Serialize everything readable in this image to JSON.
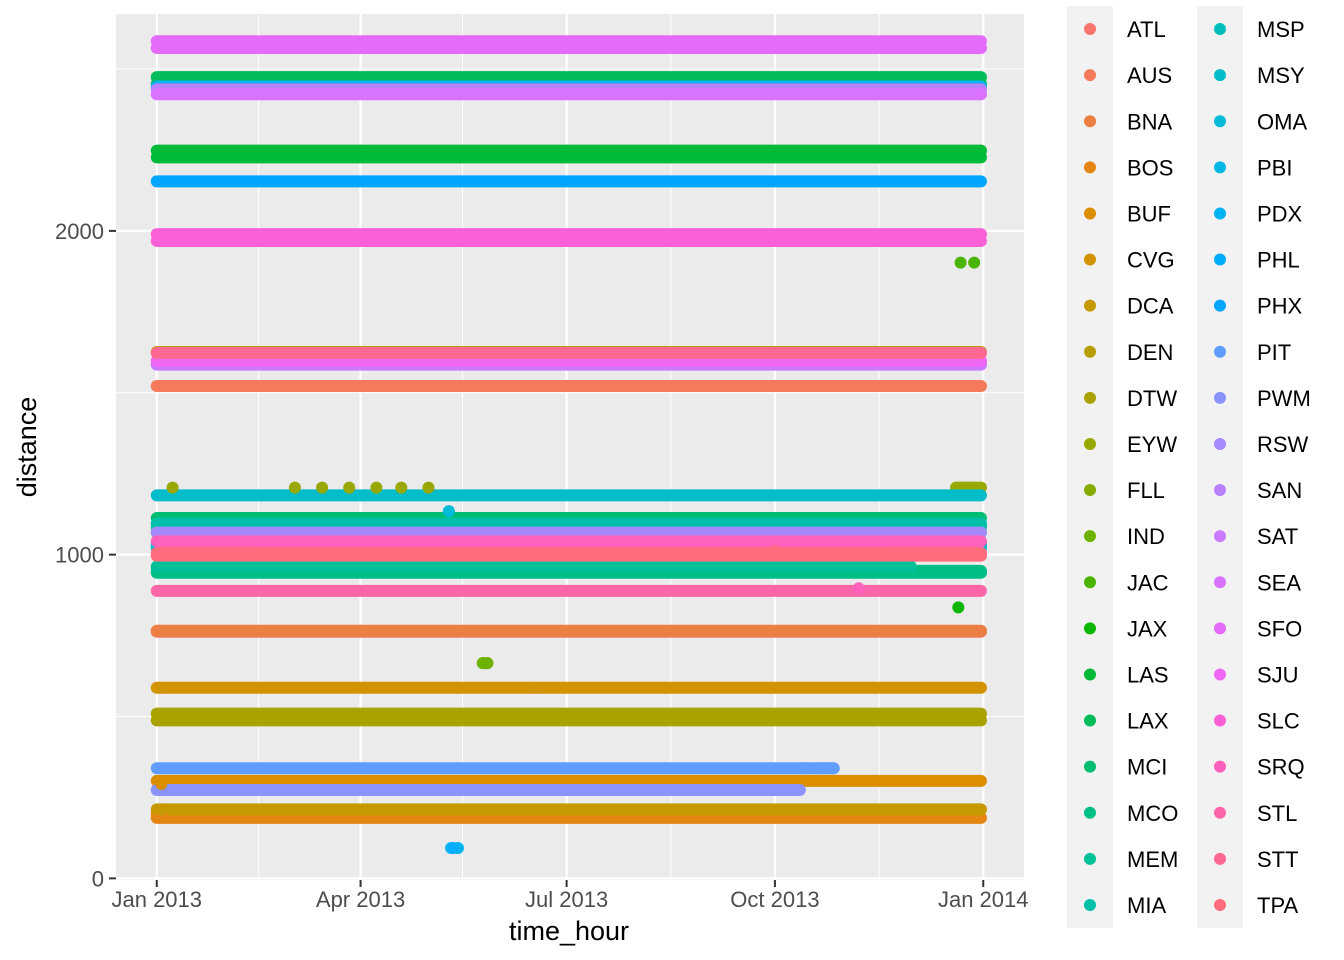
{
  "chart_data": {
    "type": "scatter",
    "title": "",
    "xlabel": "time_hour",
    "ylabel": "distance",
    "x_ticks": [
      "Jan 2013",
      "Apr 2013",
      "Jul 2013",
      "Oct 2013",
      "Jan 2014"
    ],
    "x_range": [
      "2012-12-14",
      "2014-01-19"
    ],
    "y_ticks": [
      0,
      1000,
      2000
    ],
    "y_range": [
      -5,
      2670
    ],
    "grid": true,
    "background": "#ebebeb",
    "legend_position": "right",
    "legend_title": "",
    "legend_columns": 2,
    "series": [
      {
        "name": "ATL",
        "color": "#F8766D",
        "bands": [
          {
            "y": 762,
            "x": [
              "2013-01-01",
              "2013-12-31"
            ]
          }
        ]
      },
      {
        "name": "AUS",
        "color": "#F47A5B",
        "bands": [
          {
            "y": 1521,
            "x": [
              "2013-01-01",
              "2013-12-31"
            ]
          }
        ]
      },
      {
        "name": "BNA",
        "color": "#EC7F43",
        "bands": [
          {
            "y": 765,
            "x": [
              "2013-01-01",
              "2013-12-31"
            ]
          }
        ]
      },
      {
        "name": "BOS",
        "color": "#E48613",
        "bands": [
          {
            "y": 187,
            "x": [
              "2013-01-01",
              "2013-12-31"
            ]
          },
          {
            "y": 200,
            "x": [
              "2013-01-01",
              "2013-01-04"
            ]
          }
        ],
        "points": [
          {
            "x": "2013-01-03",
            "y": 200
          }
        ]
      },
      {
        "name": "BUF",
        "color": "#DB8E00",
        "bands": [
          {
            "y": 301,
            "x": [
              "2013-01-01",
              "2013-12-31"
            ]
          }
        ],
        "points": [
          {
            "x": "2013-01-03",
            "y": 292
          }
        ]
      },
      {
        "name": "CVG",
        "color": "#D19300",
        "bands": [
          {
            "y": 589,
            "x": [
              "2013-01-01",
              "2013-12-31"
            ]
          }
        ],
        "points": [
          {
            "x": "2013-01-04",
            "y": 589
          },
          {
            "x": "2013-06-16",
            "y": 589
          }
        ]
      },
      {
        "name": "DCA",
        "color": "#C69900",
        "bands": [
          {
            "y": 213,
            "x": [
              "2013-01-01",
              "2013-12-31"
            ]
          }
        ],
        "points": [
          {
            "x": "2013-01-03",
            "y": 213
          }
        ]
      },
      {
        "name": "DEN",
        "color": "#B89E00",
        "bands": [
          {
            "y": 1626,
            "x": [
              "2013-01-01",
              "2013-12-31"
            ]
          }
        ]
      },
      {
        "name": "DTW",
        "color": "#AAA200",
        "bands": [
          {
            "y": 488,
            "x": [
              "2013-01-01",
              "2013-12-31"
            ]
          },
          {
            "y": 509,
            "x": [
              "2013-01-01",
              "2013-12-31"
            ]
          }
        ]
      },
      {
        "name": "EYW",
        "color": "#99A800",
        "bands": [
          {
            "y": 1207,
            "x": [
              "2013-12-20",
              "2013-12-31"
            ]
          }
        ],
        "points": [
          {
            "x": "2013-01-08",
            "y": 1207
          },
          {
            "x": "2013-03-03",
            "y": 1207
          },
          {
            "x": "2013-03-15",
            "y": 1207
          },
          {
            "x": "2013-03-27",
            "y": 1207
          },
          {
            "x": "2013-04-08",
            "y": 1207
          },
          {
            "x": "2013-04-19",
            "y": 1207
          },
          {
            "x": "2013-05-01",
            "y": 1207
          }
        ]
      },
      {
        "name": "FLL",
        "color": "#85AD00",
        "bands": [
          {
            "y": 1069,
            "x": [
              "2013-01-01",
              "2013-12-31"
            ]
          }
        ]
      },
      {
        "name": "IND",
        "color": "#6DB200",
        "bands": [
          {
            "y": 665,
            "x": [
              "2013-05-25",
              "2013-05-27"
            ]
          }
        ],
        "points": [
          {
            "x": "2013-05-25",
            "y": 665
          },
          {
            "x": "2013-05-27",
            "y": 665
          }
        ]
      },
      {
        "name": "JAC",
        "color": "#4BB400",
        "points": [
          {
            "x": "2013-12-22",
            "y": 1902
          },
          {
            "x": "2013-12-28",
            "y": 1902
          }
        ]
      },
      {
        "name": "JAX",
        "color": "#0BB702",
        "points": [
          {
            "x": "2013-12-21",
            "y": 837
          }
        ]
      },
      {
        "name": "LAS",
        "color": "#00BA38",
        "bands": [
          {
            "y": 2227,
            "x": [
              "2013-01-01",
              "2013-12-31"
            ]
          },
          {
            "y": 2248,
            "x": [
              "2013-01-01",
              "2013-12-31"
            ]
          }
        ]
      },
      {
        "name": "LAX",
        "color": "#00BC59",
        "bands": [
          {
            "y": 2454,
            "x": [
              "2013-01-01",
              "2013-12-31"
            ]
          },
          {
            "y": 2475,
            "x": [
              "2013-01-01",
              "2013-12-31"
            ]
          }
        ]
      },
      {
        "name": "MCI",
        "color": "#00BE71",
        "bands": [
          {
            "y": 1113,
            "x": [
              "2013-01-01",
              "2013-12-31"
            ]
          }
        ]
      },
      {
        "name": "MCO",
        "color": "#00BF86",
        "bands": [
          {
            "y": 944,
            "x": [
              "2013-01-01",
              "2013-12-31"
            ]
          },
          {
            "y": 950,
            "x": [
              "2013-01-01",
              "2013-12-31"
            ]
          }
        ]
      },
      {
        "name": "MEM",
        "color": "#00C098",
        "bands": [
          {
            "y": 963,
            "x": [
              "2013-01-01",
              "2013-11-30"
            ]
          }
        ]
      },
      {
        "name": "MIA",
        "color": "#00C0AA",
        "bands": [
          {
            "y": 1085,
            "x": [
              "2013-01-01",
              "2013-12-31"
            ]
          },
          {
            "y": 1096,
            "x": [
              "2013-01-01",
              "2013-12-31"
            ]
          }
        ]
      },
      {
        "name": "MSP",
        "color": "#00BFBA",
        "bands": [
          {
            "y": 1020,
            "x": [
              "2013-01-01",
              "2013-12-31"
            ]
          },
          {
            "y": 1028,
            "x": [
              "2013-01-01",
              "2013-12-31"
            ]
          }
        ]
      },
      {
        "name": "MSY",
        "color": "#00BDC9",
        "bands": [
          {
            "y": 1183,
            "x": [
              "2013-01-01",
              "2013-12-31"
            ]
          }
        ]
      },
      {
        "name": "OMA",
        "color": "#00BAD8",
        "bands": [
          {
            "y": 1134,
            "x": [
              "2013-05-10",
              "2013-05-10"
            ]
          }
        ],
        "points": [
          {
            "x": "2013-05-10",
            "y": 1134
          }
        ]
      },
      {
        "name": "PBI",
        "color": "#00B7E5",
        "bands": [
          {
            "y": 1035,
            "x": [
              "2013-01-01",
              "2013-12-31"
            ]
          }
        ]
      },
      {
        "name": "PDX",
        "color": "#00B3F2",
        "bands": [
          {
            "y": 2446,
            "x": [
              "2013-01-01",
              "2013-12-31"
            ]
          }
        ],
        "points": [
          {
            "x": "2013-05-11",
            "y": 94
          },
          {
            "x": "2013-05-14",
            "y": 94
          }
        ]
      },
      {
        "name": "PHL",
        "color": "#00ADFA",
        "points": [
          {
            "x": "2013-05-12",
            "y": 94
          }
        ]
      },
      {
        "name": "PHX",
        "color": "#00A6FF",
        "bands": [
          {
            "y": 2153,
            "x": [
              "2013-01-01",
              "2013-12-31"
            ]
          }
        ]
      },
      {
        "name": "PIT",
        "color": "#619CFF",
        "bands": [
          {
            "y": 340,
            "x": [
              "2013-01-01",
              "2013-10-27"
            ]
          }
        ],
        "points": [
          {
            "x": "2013-10-13",
            "y": 340
          },
          {
            "x": "2013-10-20",
            "y": 340
          },
          {
            "x": "2013-10-26",
            "y": 340
          }
        ]
      },
      {
        "name": "PWM",
        "color": "#8B93FF",
        "bands": [
          {
            "y": 273,
            "x": [
              "2013-01-01",
              "2013-10-12"
            ]
          }
        ]
      },
      {
        "name": "RSW",
        "color": "#A58AFF",
        "bands": [
          {
            "y": 1068,
            "x": [
              "2013-01-01",
              "2013-12-31"
            ]
          }
        ]
      },
      {
        "name": "SAN",
        "color": "#BA81FF",
        "bands": [
          {
            "y": 2437,
            "x": [
              "2013-01-01",
              "2013-12-31"
            ]
          }
        ]
      },
      {
        "name": "SAT",
        "color": "#CB79FF",
        "bands": [
          {
            "y": 1587,
            "x": [
              "2013-01-01",
              "2013-12-31"
            ]
          }
        ]
      },
      {
        "name": "SEA",
        "color": "#D972FF",
        "bands": [
          {
            "y": 2422,
            "x": [
              "2013-01-01",
              "2013-12-31"
            ]
          }
        ]
      },
      {
        "name": "SFO",
        "color": "#E56BFA",
        "bands": [
          {
            "y": 2586,
            "x": [
              "2013-01-01",
              "2013-12-31"
            ]
          },
          {
            "y": 2565,
            "x": [
              "2013-01-01",
              "2013-12-31"
            ]
          }
        ]
      },
      {
        "name": "SJU",
        "color": "#EE66F2",
        "bands": [
          {
            "y": 1598,
            "x": [
              "2013-01-01",
              "2013-12-31"
            ]
          }
        ]
      },
      {
        "name": "SLC",
        "color": "#FB61D7",
        "bands": [
          {
            "y": 1990,
            "x": [
              "2013-01-01",
              "2013-12-31"
            ]
          },
          {
            "y": 1969,
            "x": [
              "2013-01-01",
              "2013-12-31"
            ]
          }
        ]
      },
      {
        "name": "SRQ",
        "color": "#FF62BC",
        "bands": [
          {
            "y": 1041,
            "x": [
              "2013-01-01",
              "2013-12-31"
            ]
          }
        ],
        "points": [
          {
            "x": "2013-11-07",
            "y": 896
          }
        ]
      },
      {
        "name": "STL",
        "color": "#FF65A9",
        "bands": [
          {
            "y": 888,
            "x": [
              "2013-01-01",
              "2013-12-31"
            ]
          }
        ]
      },
      {
        "name": "STT",
        "color": "#FF6891",
        "bands": [
          {
            "y": 1623,
            "x": [
              "2013-01-01",
              "2013-12-31"
            ]
          }
        ]
      },
      {
        "name": "TPA",
        "color": "#FF6C7D",
        "bands": [
          {
            "y": 1005,
            "x": [
              "2013-01-01",
              "2013-12-31"
            ]
          },
          {
            "y": 997,
            "x": [
              "2013-01-01",
              "2013-12-31"
            ]
          }
        ],
        "points": [
          {
            "x": "2013-10-01",
            "y": 1011
          }
        ]
      }
    ]
  }
}
